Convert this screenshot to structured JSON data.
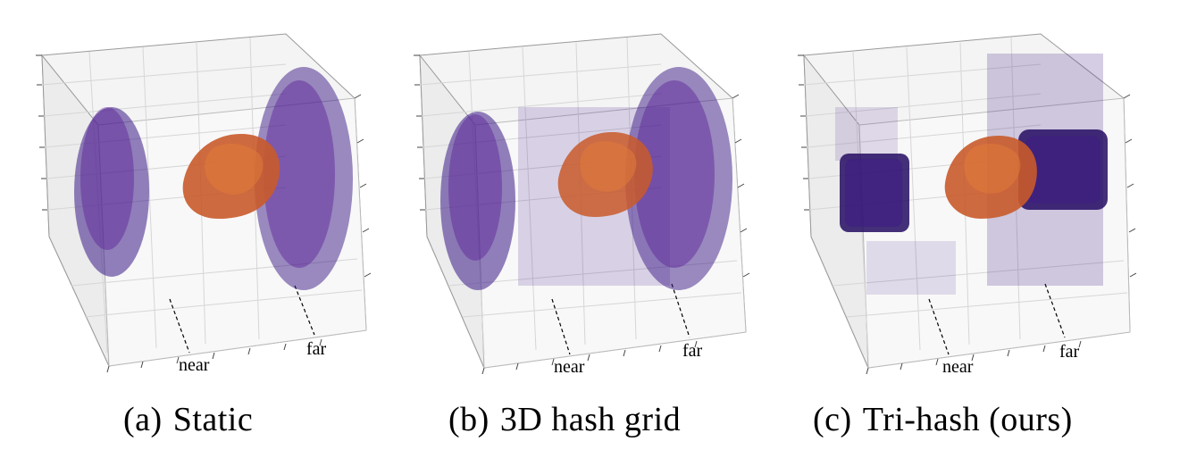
{
  "panels": [
    {
      "id": "a",
      "tag": "(a)",
      "title": "Static",
      "near_label": "near",
      "far_label": "far",
      "objects": [
        "left-dynamic-region",
        "central-head",
        "right-dynamic-region"
      ]
    },
    {
      "id": "b",
      "tag": "(b)",
      "title": "3D hash grid",
      "near_label": "near",
      "far_label": "far",
      "objects": [
        "left-dynamic-region",
        "central-head",
        "right-dynamic-region"
      ]
    },
    {
      "id": "c",
      "tag": "(c)",
      "title": "Tri-hash (ours)",
      "near_label": "near",
      "far_label": "far",
      "objects": [
        "left-block",
        "central-head",
        "right-block"
      ]
    }
  ],
  "colors": {
    "point_dark": "#2b1a7a",
    "point_mid": "#7a2a9a",
    "point_warm": "#d2552e",
    "head_fill": "#c95a2a",
    "block_fill": "#2a1266",
    "grid_line": "#d6d6d6",
    "pane_fill": "#f2f2f2"
  }
}
